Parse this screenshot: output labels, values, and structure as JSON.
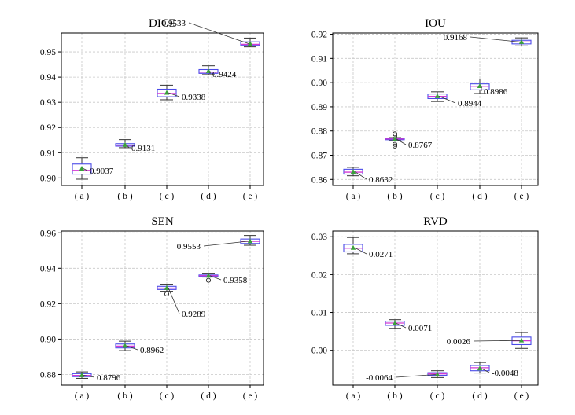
{
  "chart_data": [
    {
      "type": "box",
      "title": "DICE",
      "categories": [
        "( a )",
        "( b )",
        "( c )",
        "( d )",
        "( e )"
      ],
      "ylim": [
        0.897,
        0.9575
      ],
      "yticks": [
        0.9,
        0.91,
        0.92,
        0.93,
        0.94,
        0.95
      ],
      "yticklabels": [
        "0.90",
        "0.91",
        "0.92",
        "0.93",
        "0.94",
        "0.95"
      ],
      "grid": true,
      "boxes": [
        {
          "min": 0.8995,
          "q1": 0.9015,
          "median": 0.903,
          "q3": 0.9055,
          "max": 0.908,
          "mean": 0.9037,
          "outliers": []
        },
        {
          "min": 0.912,
          "q1": 0.9126,
          "median": 0.913,
          "q3": 0.9136,
          "max": 0.9152,
          "mean": 0.9131,
          "outliers": []
        },
        {
          "min": 0.931,
          "q1": 0.9322,
          "median": 0.9335,
          "q3": 0.9352,
          "max": 0.9368,
          "mean": 0.9338,
          "outliers": []
        },
        {
          "min": 0.941,
          "q1": 0.9415,
          "median": 0.942,
          "q3": 0.943,
          "max": 0.9445,
          "mean": 0.9424,
          "outliers": []
        },
        {
          "min": 0.952,
          "q1": 0.9526,
          "median": 0.953,
          "q3": 0.954,
          "max": 0.9555,
          "mean": 0.9533,
          "outliers": []
        }
      ],
      "annotations": [
        "0.9037",
        "0.9131",
        "0.9338",
        "0.9424",
        "0.9533"
      ]
    },
    {
      "type": "box",
      "title": "IOU",
      "categories": [
        "( a )",
        "( b )",
        "( c )",
        "( d )",
        "( e )"
      ],
      "ylim": [
        0.8575,
        0.9205
      ],
      "yticks": [
        0.86,
        0.87,
        0.88,
        0.89,
        0.9,
        0.91,
        0.92
      ],
      "yticklabels": [
        "0.86",
        "0.87",
        "0.88",
        "0.89",
        "0.90",
        "0.91",
        "0.92"
      ],
      "grid": true,
      "boxes": [
        {
          "min": 0.8615,
          "q1": 0.8622,
          "median": 0.863,
          "q3": 0.8642,
          "max": 0.865,
          "mean": 0.8632,
          "outliers": []
        },
        {
          "min": 0.8762,
          "q1": 0.8764,
          "median": 0.8767,
          "q3": 0.877,
          "max": 0.8773,
          "mean": 0.8767,
          "outliers": [
            0.8788,
            0.878,
            0.8745,
            0.8738
          ]
        },
        {
          "min": 0.8922,
          "q1": 0.8934,
          "median": 0.8943,
          "q3": 0.8953,
          "max": 0.8962,
          "mean": 0.8944,
          "outliers": []
        },
        {
          "min": 0.8955,
          "q1": 0.897,
          "median": 0.8985,
          "q3": 0.8995,
          "max": 0.9015,
          "mean": 0.8986,
          "outliers": []
        },
        {
          "min": 0.9152,
          "q1": 0.916,
          "median": 0.9168,
          "q3": 0.9175,
          "max": 0.9185,
          "mean": 0.9168,
          "outliers": []
        }
      ],
      "annotations": [
        "0.8632",
        "0.8767",
        "0.8944",
        "0.8986",
        "0.9168"
      ]
    },
    {
      "type": "box",
      "title": "SEN",
      "categories": [
        "( a )",
        "( b )",
        "( c )",
        "( d )",
        "( e )"
      ],
      "ylim": [
        0.874,
        0.961
      ],
      "yticks": [
        0.88,
        0.9,
        0.92,
        0.94,
        0.96
      ],
      "yticklabels": [
        "0.88",
        "0.90",
        "0.92",
        "0.94",
        "0.96"
      ],
      "grid": true,
      "boxes": [
        {
          "min": 0.8778,
          "q1": 0.8788,
          "median": 0.8795,
          "q3": 0.8805,
          "max": 0.8815,
          "mean": 0.8796,
          "outliers": []
        },
        {
          "min": 0.8935,
          "q1": 0.895,
          "median": 0.896,
          "q3": 0.8972,
          "max": 0.8988,
          "mean": 0.8962,
          "outliers": []
        },
        {
          "min": 0.927,
          "q1": 0.928,
          "median": 0.9288,
          "q3": 0.9298,
          "max": 0.931,
          "mean": 0.9289,
          "outliers": [
            0.9255
          ]
        },
        {
          "min": 0.935,
          "q1": 0.9354,
          "median": 0.9358,
          "q3": 0.9362,
          "max": 0.9372,
          "mean": 0.9358,
          "outliers": [
            0.9332
          ]
        },
        {
          "min": 0.953,
          "q1": 0.954,
          "median": 0.9552,
          "q3": 0.9565,
          "max": 0.9585,
          "mean": 0.9553,
          "outliers": []
        }
      ],
      "annotations": [
        "0.8796",
        "0.8962",
        "0.9289",
        "0.9358",
        "0.9553"
      ]
    },
    {
      "type": "box",
      "title": "RVD",
      "categories": [
        "( a )",
        "( b )",
        "( c )",
        "( d )",
        "( e )"
      ],
      "ylim": [
        -0.0092,
        0.0315
      ],
      "yticks": [
        0.0,
        0.01,
        0.02,
        0.03
      ],
      "yticklabels": [
        "0.00",
        "0.01",
        "0.02",
        "0.03"
      ],
      "grid": true,
      "boxes": [
        {
          "min": 0.0255,
          "q1": 0.026,
          "median": 0.027,
          "q3": 0.028,
          "max": 0.0298,
          "mean": 0.0271,
          "outliers": []
        },
        {
          "min": 0.0058,
          "q1": 0.0066,
          "median": 0.0072,
          "q3": 0.0077,
          "max": 0.0081,
          "mean": 0.0071,
          "outliers": []
        },
        {
          "min": -0.0072,
          "q1": -0.0066,
          "median": -0.0062,
          "q3": -0.0059,
          "max": -0.0054,
          "mean": -0.0064,
          "outliers": []
        },
        {
          "min": -0.006,
          "q1": -0.0054,
          "median": -0.0046,
          "q3": -0.004,
          "max": -0.0032,
          "mean": -0.0048,
          "outliers": []
        },
        {
          "min": 0.0005,
          "q1": 0.0015,
          "median": 0.0025,
          "q3": 0.0035,
          "max": 0.0047,
          "mean": 0.0026,
          "outliers": []
        }
      ],
      "annotations": [
        "0.0271",
        "0.0071",
        "-0.0064",
        "-0.0048",
        "0.0026"
      ]
    }
  ],
  "colors": {
    "box_edge": "#4a4ae8",
    "median": "#d43ad4",
    "mean_marker": "#3aa13a",
    "whisker": "#333333",
    "grid": "#c8c8c8",
    "axes": "#000000"
  }
}
